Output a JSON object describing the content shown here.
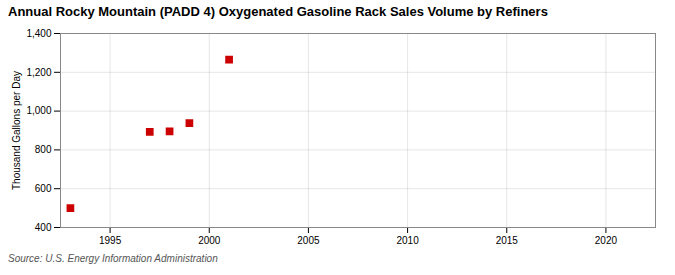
{
  "chart_data": {
    "type": "scatter",
    "title": "Annual Rocky Mountain (PADD 4) Oxygenated Gasoline Rack Sales Volume by Refiners",
    "ylabel": "Thousand Gallons per Day",
    "source": "Source: U.S. Energy Information Administration",
    "x": [
      1993,
      1997,
      1998,
      1999,
      2001
    ],
    "values": [
      500,
      893,
      895,
      938,
      1265
    ],
    "color": "#cc0000",
    "marker": "square",
    "xlim": [
      1992.5,
      2022.5
    ],
    "ylim": [
      400,
      1400
    ],
    "xticks": [
      1995,
      2000,
      2005,
      2010,
      2015,
      2020
    ],
    "yticks": [
      400,
      600,
      800,
      {
        "value": 1000,
        "label": "1,000"
      },
      {
        "value": 1200,
        "label": "1,200"
      },
      {
        "value": 1400,
        "label": "1,400"
      }
    ],
    "grid": true
  }
}
